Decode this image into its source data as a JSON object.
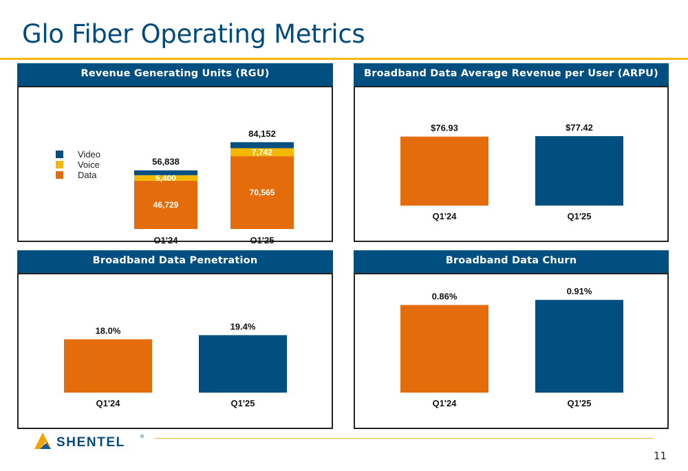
{
  "slide": {
    "title": "Glo Fiber Operating Metrics",
    "page_number": "11"
  },
  "logo": {
    "text": "SHENTEL",
    "registered_mark": "®"
  },
  "colors": {
    "navy": "#004f80",
    "orange": "#e46c0a",
    "gold": "#f5b800",
    "rule": "#f5b800"
  },
  "chart_data": [
    {
      "type": "bar",
      "stacked": true,
      "title": "Revenue Generating Units (RGU)",
      "categories": [
        "Q1'24",
        "Q1'25"
      ],
      "series": [
        {
          "name": "Data",
          "color": "#e46c0a",
          "values": [
            46729,
            70565
          ],
          "labels": [
            "46,729",
            "70,565"
          ]
        },
        {
          "name": "Voice",
          "color": "#f5b800",
          "values": [
            5400,
            7742
          ],
          "labels": [
            "5,400",
            "7,742"
          ]
        },
        {
          "name": "Video",
          "color": "#004f80",
          "values": [
            4709,
            5845
          ]
        }
      ],
      "totals": [
        "56,838",
        "84,152"
      ],
      "legend": [
        "Video",
        "Voice",
        "Data"
      ],
      "legend_position": "left",
      "ylim": [
        0,
        92000
      ]
    },
    {
      "type": "bar",
      "title": "Broadband Data Average Revenue per User (ARPU)",
      "categories": [
        "Q1'24",
        "Q1'25"
      ],
      "values": [
        76.93,
        77.42
      ],
      "labels": [
        "$76.93",
        "$77.42"
      ],
      "colors": [
        "#e46c0a",
        "#004f80"
      ],
      "ylim": [
        0,
        92
      ]
    },
    {
      "type": "bar",
      "title": "Broadband Data Penetration",
      "categories": [
        "Q1'24",
        "Q1'25"
      ],
      "values": [
        18.0,
        19.4
      ],
      "labels": [
        "18.0%",
        "19.4%"
      ],
      "colors": [
        "#e46c0a",
        "#004f80"
      ],
      "ylim": [
        0,
        26
      ]
    },
    {
      "type": "bar",
      "title": "Broadband Data Churn",
      "categories": [
        "Q1'24",
        "Q1'25"
      ],
      "values": [
        0.86,
        0.91
      ],
      "labels": [
        "0.86%",
        "0.91%"
      ],
      "colors": [
        "#e46c0a",
        "#004f80"
      ],
      "ylim": [
        0,
        1.1
      ]
    }
  ]
}
